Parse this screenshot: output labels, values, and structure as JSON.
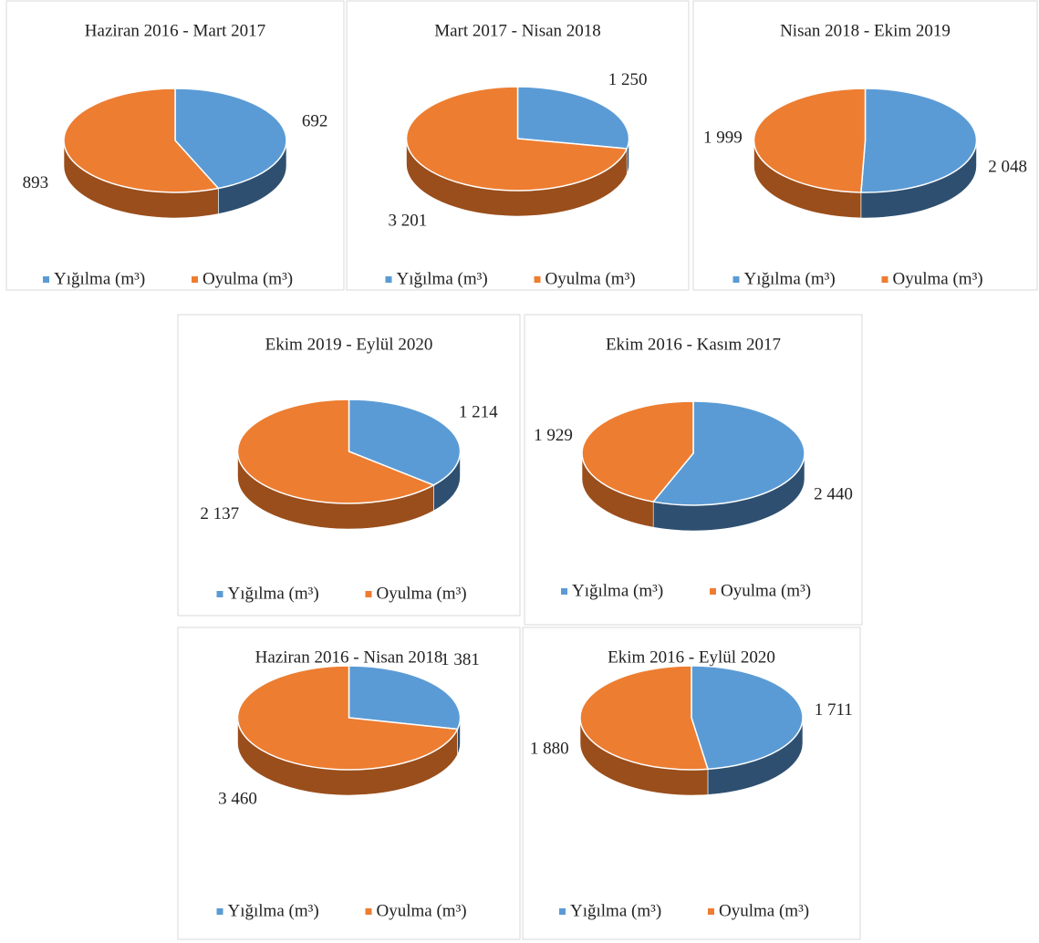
{
  "chart_data": [
    {
      "type": "pie",
      "title": "Haziran 2016 - Mart 2017",
      "categories": [
        "Yığılma (m³)",
        "Oyulma (m³)"
      ],
      "values": [
        692,
        893
      ],
      "value_labels": [
        "692",
        "893"
      ],
      "colors": [
        "#5b9bd5",
        "#ed7d31"
      ]
    },
    {
      "type": "pie",
      "title": "Mart 2017 - Nisan 2018",
      "categories": [
        "Yığılma (m³)",
        "Oyulma (m³)"
      ],
      "values": [
        1250,
        3201
      ],
      "value_labels": [
        "1 250",
        "3 201"
      ],
      "colors": [
        "#5b9bd5",
        "#ed7d31"
      ]
    },
    {
      "type": "pie",
      "title": "Nisan 2018 - Ekim 2019",
      "categories": [
        "Yığılma (m³)",
        "Oyulma (m³)"
      ],
      "values": [
        2048,
        1999
      ],
      "value_labels": [
        "2 048",
        "1 999"
      ],
      "colors": [
        "#5b9bd5",
        "#ed7d31"
      ]
    },
    {
      "type": "pie",
      "title": "Ekim 2019 - Eylül 2020",
      "categories": [
        "Yığılma (m³)",
        "Oyulma (m³)"
      ],
      "values": [
        1214,
        2137
      ],
      "value_labels": [
        "1 214",
        "2 137"
      ],
      "colors": [
        "#5b9bd5",
        "#ed7d31"
      ]
    },
    {
      "type": "pie",
      "title": "Ekim 2016 - Kasım 2017",
      "categories": [
        "Yığılma (m³)",
        "Oyulma (m³)"
      ],
      "values": [
        2440,
        1929
      ],
      "value_labels": [
        "2 440",
        "1 929"
      ],
      "colors": [
        "#5b9bd5",
        "#ed7d31"
      ]
    },
    {
      "type": "pie",
      "title": "Haziran 2016 - Nisan 2018",
      "categories": [
        "Yığılma (m³)",
        "Oyulma (m³)"
      ],
      "values": [
        1381,
        3460
      ],
      "value_labels": [
        "1 381",
        "3 460"
      ],
      "colors": [
        "#5b9bd5",
        "#ed7d31"
      ]
    },
    {
      "type": "pie",
      "title": "Ekim 2016 - Eylül 2020",
      "categories": [
        "Yığılma (m³)",
        "Oyulma (m³)"
      ],
      "values": [
        1711,
        1880
      ],
      "value_labels": [
        "1 711",
        "1 880"
      ],
      "colors": [
        "#5b9bd5",
        "#ed7d31"
      ]
    }
  ]
}
